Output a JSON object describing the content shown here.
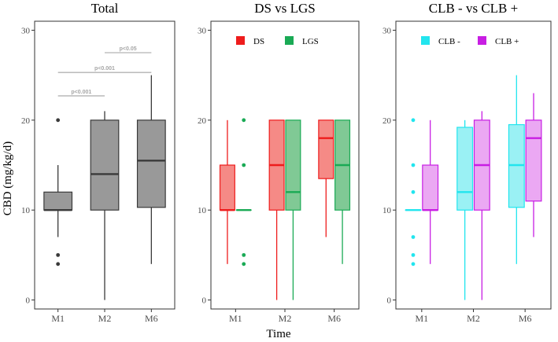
{
  "chart_data": {
    "type": "boxplot",
    "ylabel": "CBD (mg/kg/d)",
    "xlabel": "Time",
    "categories": [
      "M1",
      "M2",
      "M6"
    ],
    "ylim": [
      -1,
      31
    ],
    "yticks": [
      0,
      10,
      20,
      30
    ],
    "grid": false,
    "panels": [
      {
        "title": "Total",
        "legend": [],
        "annotations": [
          {
            "label": "p<0.001",
            "from": "M1",
            "to": "M2",
            "y": 22.7
          },
          {
            "label": "p<0.001",
            "from": "M1",
            "to": "M6",
            "y": 25.3
          },
          {
            "label": "p<0.05",
            "from": "M2",
            "to": "M6",
            "y": 27.5
          }
        ],
        "groups": [
          {
            "color": "#3a3a3a",
            "fill": "#999999",
            "boxes": [
              {
                "q1": 10,
                "median": 10,
                "q3": 12,
                "lo": 7,
                "hi": 15,
                "outliers": [
                  20,
                  5,
                  4
                ]
              },
              {
                "q1": 10,
                "median": 14,
                "q3": 20,
                "lo": 0,
                "hi": 21,
                "outliers": []
              },
              {
                "q1": 10.3,
                "median": 15.5,
                "q3": 20,
                "lo": 4,
                "hi": 25,
                "outliers": []
              }
            ]
          }
        ]
      },
      {
        "title": "DS vs LGS",
        "legend": [
          {
            "label": "DS",
            "color": "#ee1c1c"
          },
          {
            "label": "LGS",
            "color": "#1aaa55"
          }
        ],
        "annotations": [],
        "groups": [
          {
            "name": "DS",
            "color": "#ee1c1c",
            "fill": "#f58a86",
            "boxes": [
              {
                "q1": 10,
                "median": 10,
                "q3": 15,
                "lo": 4,
                "hi": 20,
                "outliers": []
              },
              {
                "q1": 10,
                "median": 15,
                "q3": 20,
                "lo": 0,
                "hi": 20,
                "outliers": []
              },
              {
                "q1": 13.5,
                "median": 18,
                "q3": 20,
                "lo": 7,
                "hi": 20,
                "outliers": []
              }
            ]
          },
          {
            "name": "LGS",
            "color": "#1aaa55",
            "fill": "#80c995",
            "boxes": [
              {
                "q1": 10,
                "median": 10,
                "q3": 10,
                "lo": 10,
                "hi": 10,
                "outliers": [
                  20,
                  15,
                  5,
                  4
                ]
              },
              {
                "q1": 10,
                "median": 12,
                "q3": 20,
                "lo": 0,
                "hi": 20,
                "outliers": []
              },
              {
                "q1": 10,
                "median": 15,
                "q3": 20,
                "lo": 4,
                "hi": 20,
                "outliers": []
              }
            ]
          }
        ]
      },
      {
        "title": "CLB - vs CLB +",
        "legend": [
          {
            "label": "CLB -",
            "color": "#22e5ee"
          },
          {
            "label": "CLB +",
            "color": "#c81ee3"
          }
        ],
        "annotations": [],
        "groups": [
          {
            "name": "CLB -",
            "color": "#22e5ee",
            "fill": "#9af1f4",
            "boxes": [
              {
                "q1": 10,
                "median": 10,
                "q3": 10,
                "lo": 10,
                "hi": 10,
                "outliers": [
                  20,
                  15,
                  12,
                  7,
                  5,
                  4
                ]
              },
              {
                "q1": 10,
                "median": 12,
                "q3": 19.2,
                "lo": 0,
                "hi": 20,
                "outliers": []
              },
              {
                "q1": 10.3,
                "median": 15,
                "q3": 19.5,
                "lo": 4,
                "hi": 25,
                "outliers": []
              }
            ]
          },
          {
            "name": "CLB +",
            "color": "#c81ee3",
            "fill": "#eba8f3",
            "boxes": [
              {
                "q1": 10,
                "median": 10,
                "q3": 15,
                "lo": 4,
                "hi": 20,
                "outliers": []
              },
              {
                "q1": 10,
                "median": 15,
                "q3": 20,
                "lo": 0,
                "hi": 21,
                "outliers": []
              },
              {
                "q1": 11,
                "median": 18,
                "q3": 20,
                "lo": 7,
                "hi": 23,
                "outliers": []
              }
            ]
          }
        ]
      }
    ]
  }
}
